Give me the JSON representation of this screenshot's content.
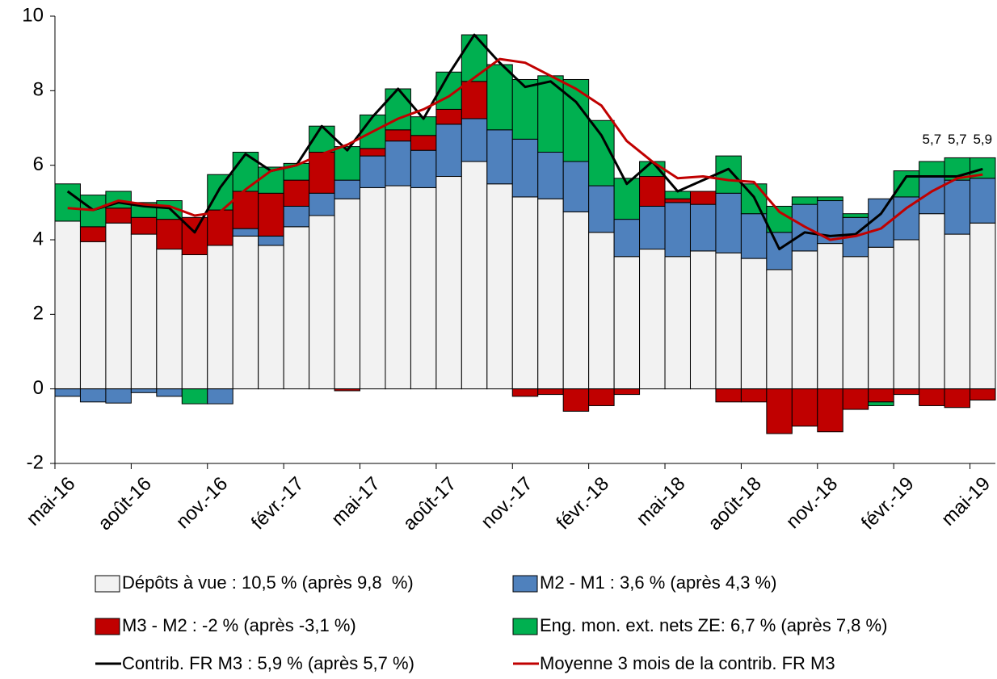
{
  "chart_data": {
    "type": "bar",
    "categories": [
      "mai-16",
      null,
      null,
      "août-16",
      null,
      null,
      "nov.-16",
      null,
      null,
      "févr.-17",
      null,
      null,
      "mai-17",
      null,
      null,
      "août-17",
      null,
      null,
      "nov.-17",
      null,
      null,
      "févr.-18",
      null,
      null,
      "mai-18",
      null,
      null,
      "août-18",
      null,
      null,
      "nov.-18",
      null,
      null,
      "févr.-19",
      null,
      null,
      "mai-19"
    ],
    "stacked": true,
    "ylim": [
      -2,
      10
    ],
    "yticks": [
      -2,
      0,
      2,
      4,
      6,
      8,
      10
    ],
    "grid": false,
    "series": [
      {
        "name": "Dépôts à vue : 10,5 % (après 9,8  %)",
        "color": "#f2f2f2",
        "type": "bar",
        "values": [
          4.5,
          3.95,
          4.45,
          4.15,
          3.75,
          3.6,
          3.85,
          4.1,
          3.85,
          4.35,
          4.65,
          5.1,
          5.4,
          5.45,
          5.4,
          5.7,
          6.1,
          5.5,
          5.15,
          5.1,
          4.75,
          4.2,
          3.55,
          3.75,
          3.55,
          3.7,
          3.65,
          3.5,
          3.2,
          3.7,
          3.9,
          3.55,
          3.8,
          4.0,
          4.7,
          4.15,
          4.45
        ]
      },
      {
        "name": "M2 - M1 : 3,6 % (après 4,3 %)",
        "color": "#4f81bd",
        "type": "bar",
        "values": [
          -0.2,
          -0.35,
          -0.38,
          -0.1,
          -0.2,
          0,
          -0.4,
          0.2,
          0.25,
          0.55,
          0.6,
          0.5,
          0.85,
          1.2,
          1.0,
          1.4,
          1.15,
          1.45,
          1.55,
          1.25,
          1.35,
          1.25,
          1.0,
          1.15,
          1.45,
          1.25,
          1.6,
          1.2,
          1.0,
          1.25,
          1.15,
          1.05,
          1.3,
          1.15,
          1.0,
          1.45,
          1.2
        ]
      },
      {
        "name": "M3 - M2 : -2 % (après -3,1 %)",
        "color": "#c00000",
        "type": "bar",
        "values": [
          0,
          0.4,
          0.4,
          0.45,
          0.8,
          1.0,
          0.95,
          1.0,
          1.15,
          0.7,
          1.1,
          -0.05,
          0.2,
          0.3,
          0.4,
          0.4,
          1.0,
          0,
          -0.2,
          -0.15,
          -0.6,
          -0.45,
          -0.15,
          0.8,
          0.1,
          0.35,
          -0.35,
          -0.35,
          -1.2,
          -1.0,
          -1.15,
          -0.55,
          -0.35,
          -0.15,
          -0.45,
          -0.5,
          -0.3
        ]
      },
      {
        "name": "Eng. mon. ext. nets ZE: 6,7 % (après 7,8 %)",
        "color": "#00b050",
        "type": "bar",
        "values": [
          1.0,
          0.85,
          0.45,
          0.4,
          0.5,
          -0.4,
          0.95,
          1.05,
          0.7,
          0.45,
          0.7,
          0.9,
          0.9,
          1.1,
          0.5,
          1.0,
          1.25,
          1.75,
          1.6,
          2.05,
          2.2,
          1.75,
          1.1,
          0.4,
          0.2,
          0,
          1.0,
          0.8,
          0.7,
          0.2,
          0.1,
          0.1,
          -0.1,
          0.7,
          0.4,
          0.6,
          0.55
        ]
      },
      {
        "name": "Contrib. FR M3 : 5,9 % (après 5,7 %)",
        "color": "#000000",
        "type": "line",
        "values": [
          5.3,
          4.8,
          5.0,
          4.9,
          4.85,
          4.2,
          5.4,
          6.3,
          5.85,
          6.0,
          7.05,
          6.4,
          7.3,
          8.05,
          7.25,
          8.45,
          9.5,
          8.75,
          8.1,
          8.25,
          7.7,
          6.8,
          5.5,
          6.1,
          5.3,
          5.6,
          5.9,
          5.15,
          3.75,
          4.2,
          4.1,
          4.15,
          4.7,
          5.7,
          5.7,
          5.7,
          5.9
        ],
        "value_labels": [
          null,
          null,
          null,
          null,
          null,
          null,
          null,
          null,
          null,
          null,
          null,
          null,
          null,
          null,
          null,
          null,
          null,
          null,
          null,
          null,
          null,
          null,
          null,
          null,
          null,
          null,
          null,
          null,
          null,
          null,
          null,
          null,
          null,
          null,
          "5,7",
          "5,7",
          "5,9"
        ]
      },
      {
        "name": "Moyenne 3 mois de la contrib. FR M3",
        "color": "#c00000",
        "type": "line",
        "values": [
          4.85,
          4.8,
          5.05,
          4.95,
          4.9,
          4.65,
          4.75,
          5.35,
          5.85,
          6.0,
          6.3,
          6.55,
          6.9,
          7.25,
          7.5,
          7.85,
          8.35,
          8.85,
          8.75,
          8.4,
          8.05,
          7.6,
          6.65,
          6.1,
          5.65,
          5.7,
          5.6,
          5.55,
          4.75,
          4.35,
          4.0,
          4.1,
          4.3,
          4.85,
          5.3,
          5.65,
          5.75
        ]
      }
    ]
  }
}
